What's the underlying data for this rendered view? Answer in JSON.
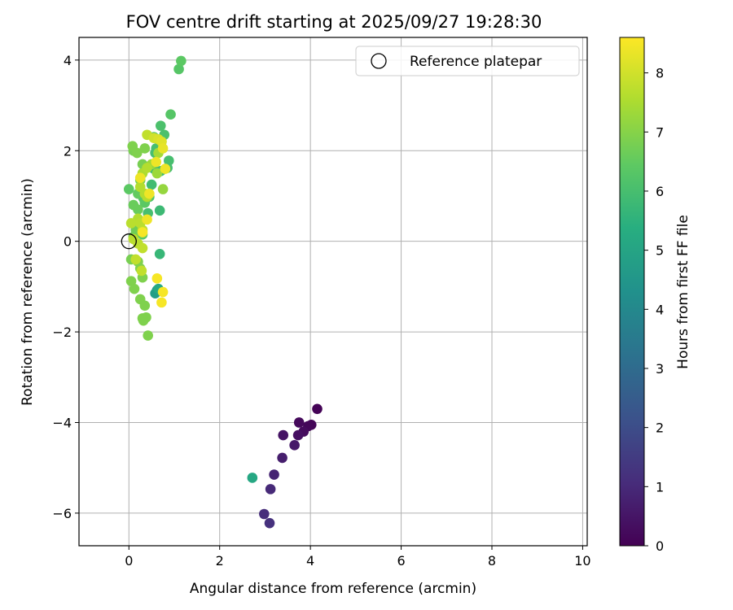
{
  "chart_data": {
    "type": "scatter",
    "title": "FOV centre drift starting at 2025/09/27 19:28:30",
    "xlabel": "Angular distance from reference (arcmin)",
    "ylabel": "Rotation from reference (arcmin)",
    "xlim": [
      -1.1,
      10.1
    ],
    "ylim": [
      -6.72,
      4.5
    ],
    "xticks": [
      0,
      2,
      4,
      6,
      8,
      10
    ],
    "yticks": [
      -6,
      -4,
      -2,
      0,
      2,
      4
    ],
    "grid": true,
    "legend": {
      "placement": "top-right",
      "entries": [
        "Reference platepar"
      ]
    },
    "reference_point": {
      "x": 0,
      "y": 0,
      "label": "Reference platepar"
    },
    "colorbar": {
      "label": "Hours from first FF file",
      "min": 0,
      "max": 8.6,
      "ticks": [
        0,
        1,
        2,
        3,
        4,
        5,
        6,
        7,
        8
      ],
      "colormap": "viridis"
    },
    "points": [
      {
        "x": 4.15,
        "y": -3.7,
        "h": 0.05
      },
      {
        "x": 4.02,
        "y": -4.05,
        "h": 0.1
      },
      {
        "x": 3.95,
        "y": -4.08,
        "h": 0.15
      },
      {
        "x": 3.75,
        "y": -4.0,
        "h": 0.2
      },
      {
        "x": 3.85,
        "y": -4.2,
        "h": 0.25
      },
      {
        "x": 3.73,
        "y": -4.28,
        "h": 0.35
      },
      {
        "x": 3.4,
        "y": -4.28,
        "h": 0.45
      },
      {
        "x": 3.65,
        "y": -4.5,
        "h": 0.55
      },
      {
        "x": 3.38,
        "y": -4.78,
        "h": 0.7
      },
      {
        "x": 3.2,
        "y": -5.15,
        "h": 0.85
      },
      {
        "x": 3.12,
        "y": -5.47,
        "h": 1.0
      },
      {
        "x": 2.98,
        "y": -6.02,
        "h": 1.1
      },
      {
        "x": 3.1,
        "y": -6.22,
        "h": 1.2
      },
      {
        "x": 2.72,
        "y": -5.22,
        "h": 5.1
      },
      {
        "x": 0.62,
        "y": -1.08,
        "h": 4.4
      },
      {
        "x": 0.58,
        "y": -1.15,
        "h": 4.8
      },
      {
        "x": 0.65,
        "y": -1.05,
        "h": 5.2
      },
      {
        "x": 0.68,
        "y": -0.28,
        "h": 5.7
      },
      {
        "x": 0.68,
        "y": 0.68,
        "h": 5.8
      },
      {
        "x": 0.5,
        "y": 1.25,
        "h": 5.9
      },
      {
        "x": 0.55,
        "y": 1.6,
        "h": 5.8
      },
      {
        "x": 0.7,
        "y": 1.55,
        "h": 5.9
      },
      {
        "x": 0.85,
        "y": 1.62,
        "h": 6.0
      },
      {
        "x": 0.88,
        "y": 1.78,
        "h": 6.0
      },
      {
        "x": 0.58,
        "y": 1.95,
        "h": 6.0
      },
      {
        "x": 0.6,
        "y": 2.05,
        "h": 6.0
      },
      {
        "x": 0.72,
        "y": 2.2,
        "h": 6.1
      },
      {
        "x": 0.78,
        "y": 2.35,
        "h": 6.1
      },
      {
        "x": 0.7,
        "y": 2.55,
        "h": 6.1
      },
      {
        "x": 0.55,
        "y": 2.3,
        "h": 6.2
      },
      {
        "x": 0.92,
        "y": 2.8,
        "h": 6.3
      },
      {
        "x": 1.1,
        "y": 3.8,
        "h": 6.3
      },
      {
        "x": 1.15,
        "y": 3.98,
        "h": 6.4
      },
      {
        "x": 0.42,
        "y": 0.62,
        "h": 6.0
      },
      {
        "x": 0.45,
        "y": 0.98,
        "h": 6.2
      },
      {
        "x": 0.32,
        "y": 0.95,
        "h": 6.3
      },
      {
        "x": 0.35,
        "y": 0.85,
        "h": 6.4
      },
      {
        "x": 0.3,
        "y": 0.15,
        "h": 6.4
      },
      {
        "x": 0.0,
        "y": 1.15,
        "h": 6.4
      },
      {
        "x": 0.2,
        "y": 1.05,
        "h": 6.5
      },
      {
        "x": 0.1,
        "y": 0.8,
        "h": 6.6
      },
      {
        "x": 0.2,
        "y": 0.7,
        "h": 6.6
      },
      {
        "x": 0.15,
        "y": 0.25,
        "h": 6.7
      },
      {
        "x": 0.1,
        "y": 0.1,
        "h": 6.7
      },
      {
        "x": 0.25,
        "y": 1.35,
        "h": 6.8
      },
      {
        "x": 0.3,
        "y": 1.7,
        "h": 6.8
      },
      {
        "x": 0.1,
        "y": 2.0,
        "h": 6.8
      },
      {
        "x": 0.08,
        "y": 2.1,
        "h": 6.9
      },
      {
        "x": 0.18,
        "y": 1.95,
        "h": 6.9
      },
      {
        "x": 0.35,
        "y": 2.05,
        "h": 6.9
      },
      {
        "x": 0.05,
        "y": -0.4,
        "h": 6.8
      },
      {
        "x": 0.2,
        "y": -0.45,
        "h": 6.9
      },
      {
        "x": 0.25,
        "y": -0.6,
        "h": 6.9
      },
      {
        "x": 0.3,
        "y": -0.8,
        "h": 6.9
      },
      {
        "x": 0.05,
        "y": -0.88,
        "h": 6.9
      },
      {
        "x": 0.12,
        "y": -1.05,
        "h": 6.9
      },
      {
        "x": 0.25,
        "y": -1.28,
        "h": 6.9
      },
      {
        "x": 0.35,
        "y": -1.42,
        "h": 6.9
      },
      {
        "x": 0.3,
        "y": -1.7,
        "h": 6.9
      },
      {
        "x": 0.38,
        "y": -1.68,
        "h": 6.9
      },
      {
        "x": 0.32,
        "y": -1.75,
        "h": 6.9
      },
      {
        "x": 0.42,
        "y": -2.08,
        "h": 6.9
      },
      {
        "x": 0.75,
        "y": 1.15,
        "h": 7.2
      },
      {
        "x": 0.62,
        "y": 1.5,
        "h": 7.3
      },
      {
        "x": 0.5,
        "y": 1.7,
        "h": 7.3
      },
      {
        "x": 0.65,
        "y": 1.95,
        "h": 7.4
      },
      {
        "x": 0.3,
        "y": 1.5,
        "h": 7.5
      },
      {
        "x": 0.4,
        "y": 1.62,
        "h": 7.6
      },
      {
        "x": 0.25,
        "y": 1.2,
        "h": 7.6
      },
      {
        "x": 0.35,
        "y": 1.05,
        "h": 7.6
      },
      {
        "x": 0.4,
        "y": 0.98,
        "h": 7.6
      },
      {
        "x": 0.2,
        "y": 0.5,
        "h": 7.6
      },
      {
        "x": 0.25,
        "y": 0.4,
        "h": 7.7
      },
      {
        "x": 0.05,
        "y": 0.4,
        "h": 7.7
      },
      {
        "x": 0.3,
        "y": 0.25,
        "h": 7.7
      },
      {
        "x": 0.1,
        "y": 0.05,
        "h": 7.7
      },
      {
        "x": 0.2,
        "y": -0.05,
        "h": 7.7
      },
      {
        "x": 0.3,
        "y": -0.15,
        "h": 7.8
      },
      {
        "x": 0.15,
        "y": -0.4,
        "h": 7.8
      },
      {
        "x": 0.28,
        "y": -0.65,
        "h": 7.8
      },
      {
        "x": 0.4,
        "y": 2.35,
        "h": 7.8
      },
      {
        "x": 0.55,
        "y": 2.28,
        "h": 8.0
      },
      {
        "x": 0.65,
        "y": 2.25,
        "h": 8.1
      },
      {
        "x": 0.72,
        "y": 2.2,
        "h": 8.2
      },
      {
        "x": 0.75,
        "y": 2.05,
        "h": 8.3
      },
      {
        "x": 0.6,
        "y": 1.75,
        "h": 8.4
      },
      {
        "x": 0.8,
        "y": 1.6,
        "h": 8.4
      },
      {
        "x": 0.45,
        "y": 1.05,
        "h": 8.4
      },
      {
        "x": 0.4,
        "y": 0.48,
        "h": 8.4
      },
      {
        "x": 0.25,
        "y": 1.4,
        "h": 8.4
      },
      {
        "x": 0.3,
        "y": 0.2,
        "h": 8.5
      },
      {
        "x": 0.62,
        "y": -0.82,
        "h": 8.5
      },
      {
        "x": 0.75,
        "y": -1.12,
        "h": 8.5
      },
      {
        "x": 0.72,
        "y": -1.35,
        "h": 8.5
      }
    ]
  }
}
